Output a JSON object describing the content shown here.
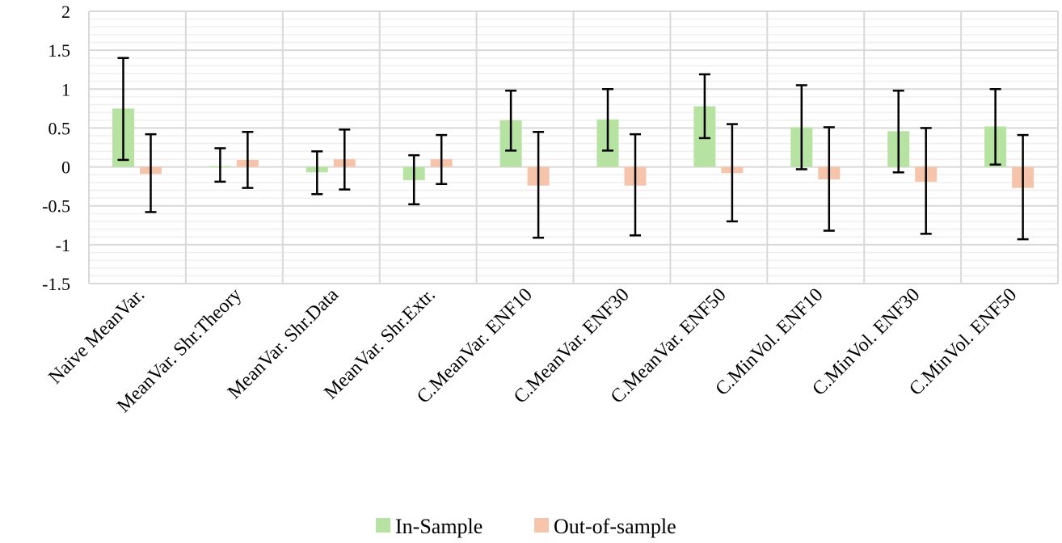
{
  "chart_data": {
    "type": "bar",
    "title": "",
    "xlabel": "",
    "ylabel": "",
    "ylim": [
      -1.5,
      2
    ],
    "y_major_step": 0.5,
    "y_minor_step": 0.1,
    "yticks": [
      "-1.5",
      "-1",
      "-0.5",
      "0",
      "0.5",
      "1",
      "1.5",
      "2"
    ],
    "grid": true,
    "legend_position": "bottom",
    "categories": [
      "Naive MeanVar.",
      "MeanVar. Shr.Theory",
      "MeanVar. Shr.Data",
      "MeanVar. Shr.Extr.",
      "C.MeanVar. ENF10",
      "C.MeanVar. ENF30",
      "C.MeanVar. ENF50",
      "C.MinVol. ENF10",
      "C.MinVol. ENF30",
      "C.MinVol. ENF50"
    ],
    "series": [
      {
        "name": "In-Sample",
        "color": "#b6e3a1",
        "values": [
          0.75,
          0.01,
          -0.07,
          -0.17,
          0.6,
          0.61,
          0.78,
          0.51,
          0.46,
          0.52
        ],
        "error_upper": [
          1.4,
          0.24,
          0.2,
          0.15,
          0.98,
          1.0,
          1.19,
          1.05,
          0.98,
          1.0
        ],
        "error_lower": [
          0.09,
          -0.19,
          -0.35,
          -0.48,
          0.21,
          0.21,
          0.37,
          -0.03,
          -0.07,
          0.03
        ]
      },
      {
        "name": "Out-of-sample",
        "color": "#f6c4aa",
        "values": [
          -0.09,
          0.09,
          0.1,
          0.1,
          -0.24,
          -0.24,
          -0.08,
          -0.16,
          -0.19,
          -0.27
        ],
        "error_upper": [
          0.42,
          0.45,
          0.48,
          0.41,
          0.45,
          0.42,
          0.55,
          0.51,
          0.5,
          0.41
        ],
        "error_lower": [
          -0.58,
          -0.27,
          -0.29,
          -0.22,
          -0.91,
          -0.88,
          -0.7,
          -0.82,
          -0.86,
          -0.93
        ]
      }
    ]
  }
}
